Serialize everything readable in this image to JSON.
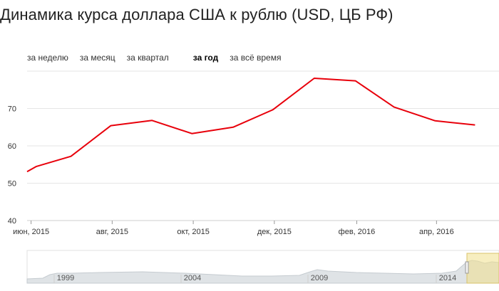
{
  "title": "Динамика курса доллара США к рублю (USD, ЦБ РФ)",
  "periods": [
    "за неделю",
    "за месяц",
    "за квартал",
    "за год",
    "за всё время"
  ],
  "active_period": "за год",
  "chart_data": {
    "type": "line",
    "title": "Динамика курса доллара США к рублю (USD, ЦБ РФ)",
    "xlabel": "",
    "ylabel": "",
    "ylim": [
      40,
      80
    ],
    "yticks": [
      40,
      50,
      60,
      70
    ],
    "x_tick_labels": [
      "июн, 2015",
      "авг, 2015",
      "окт, 2015",
      "дек, 2015",
      "фев, 2016",
      "апр, 2016"
    ],
    "grid": true,
    "series_color": "#e8000b",
    "series": [
      {
        "x": [
          "2015-05-29",
          "2015-06-05",
          "2015-07-01",
          "2015-07-31",
          "2015-08-31",
          "2015-09-30",
          "2015-10-31",
          "2015-11-30",
          "2015-12-31",
          "2016-01-31",
          "2016-02-29",
          "2016-03-31",
          "2016-04-30"
        ],
        "values": [
          53.1,
          54.5,
          57.2,
          65.4,
          66.8,
          63.3,
          65.0,
          69.7,
          78.1,
          77.4,
          70.4,
          66.7,
          65.6
        ]
      }
    ],
    "navigator_labels": [
      "1999",
      "2004",
      "2009",
      "2014"
    ]
  }
}
